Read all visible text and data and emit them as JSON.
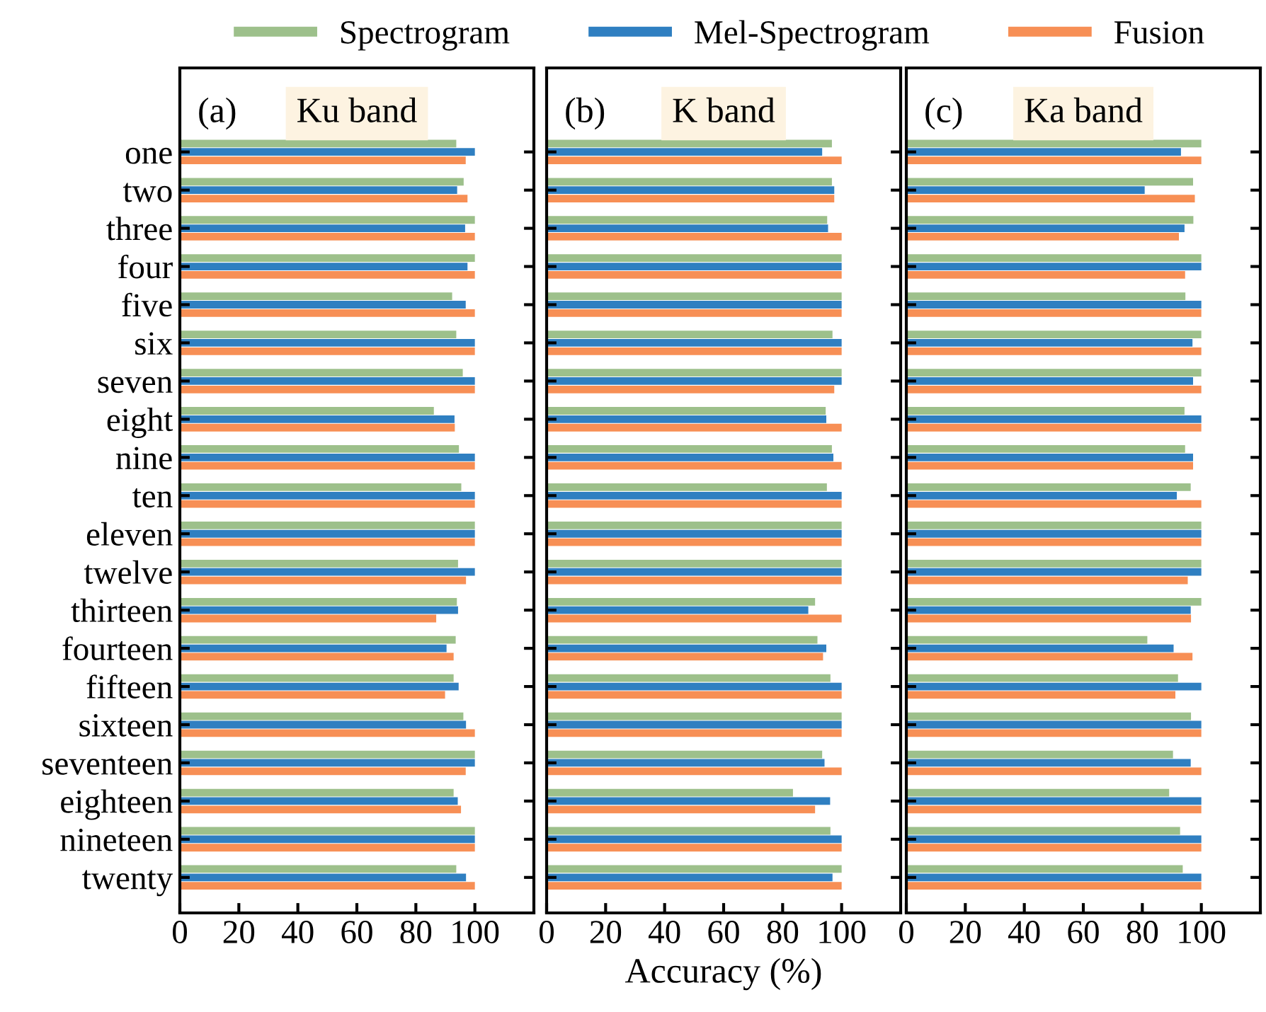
{
  "chart_data": [
    {
      "type": "bar",
      "orientation": "horizontal",
      "title": "Ku band",
      "annotations": [
        "(a)"
      ],
      "legend": "top",
      "grid": false,
      "categories": [
        "one",
        "two",
        "three",
        "four",
        "five",
        "six",
        "seven",
        "eight",
        "nine",
        "ten",
        "eleven",
        "twelve",
        "thirteen",
        "fourteen",
        "fifteen",
        "sixteen",
        "seventeen",
        "eighteen",
        "nineteen",
        "twenty"
      ],
      "xlim": [
        0,
        120
      ],
      "xticks": [
        0,
        20,
        40,
        60,
        80,
        100
      ],
      "series": [
        {
          "name": "Spectrogram",
          "color": "#9dc08b",
          "values": [
            93.7,
            96.2,
            100,
            100,
            92.3,
            93.7,
            95.9,
            86.1,
            94.6,
            95.4,
            100,
            94.3,
            93.9,
            93.5,
            92.8,
            96.1,
            100,
            92.8,
            100,
            93.7
          ]
        },
        {
          "name": "Mel-Spectrogram",
          "color": "#2f7fc1",
          "values": [
            100,
            94.0,
            96.7,
            97.5,
            96.9,
            100,
            100,
            93.1,
            100,
            100,
            100,
            100,
            94.3,
            90.4,
            94.5,
            97.0,
            100,
            94.2,
            100,
            97.0
          ]
        },
        {
          "name": "Fusion",
          "color": "#f78f55",
          "values": [
            96.9,
            97.5,
            100,
            100,
            100,
            100,
            100,
            93.2,
            100,
            100,
            100,
            97.0,
            86.9,
            92.8,
            89.9,
            100,
            96.9,
            95.3,
            100,
            100
          ]
        }
      ]
    },
    {
      "type": "bar",
      "orientation": "horizontal",
      "title": "K band",
      "annotations": [
        "(b)"
      ],
      "xlabel": "Accuracy (%)",
      "tick_labels": "x",
      "grid": false,
      "categories": [
        null,
        null,
        null,
        null,
        null,
        null,
        null,
        null,
        null,
        null,
        null,
        null,
        null,
        null,
        null,
        null,
        null,
        null,
        null,
        null
      ],
      "xlim": [
        0,
        120
      ],
      "xticks": [
        0,
        20,
        40,
        60,
        80,
        100
      ],
      "series": [
        {
          "color": "#9dc08b",
          "values": [
            96.7,
            96.7,
            95.1,
            100,
            100,
            96.9,
            100,
            94.6,
            96.7,
            95.0,
            100,
            100,
            91.0,
            91.8,
            96.2,
            100,
            93.4,
            83.5,
            96.2,
            100
          ]
        },
        {
          "color": "#2f7fc1",
          "values": [
            93.4,
            97.5,
            95.4,
            100,
            100,
            100,
            100,
            94.8,
            97.2,
            100,
            100,
            100,
            88.7,
            94.8,
            100,
            100,
            94.2,
            96.1,
            100,
            96.9
          ]
        },
        {
          "color": "#f78f55",
          "values": [
            100,
            97.5,
            100,
            100,
            100,
            100,
            97.5,
            100,
            100,
            100,
            100,
            100,
            100,
            93.7,
            100,
            100,
            100,
            91.0,
            100,
            100
          ]
        }
      ]
    },
    {
      "type": "bar",
      "orientation": "horizontal",
      "title": "Ka band",
      "annotations": [
        "(c)"
      ],
      "tick_labels": "x",
      "grid": false,
      "categories": [
        null,
        null,
        null,
        null,
        null,
        null,
        null,
        null,
        null,
        null,
        null,
        null,
        null,
        null,
        null,
        null,
        null,
        null,
        null,
        null
      ],
      "xlim": [
        0,
        120
      ],
      "xticks": [
        0,
        20,
        40,
        60,
        80,
        100
      ],
      "series": [
        {
          "color": "#9dc08b",
          "values": [
            100,
            97.2,
            97.3,
            100,
            94.6,
            100,
            100,
            94.3,
            94.5,
            96.4,
            100,
            100,
            100,
            81.7,
            92.1,
            96.5,
            90.4,
            89.1,
            92.8,
            93.7
          ]
        },
        {
          "color": "#2f7fc1",
          "values": [
            93.1,
            80.8,
            94.3,
            100,
            100,
            97.0,
            97.2,
            100,
            97.2,
            91.7,
            100,
            100,
            96.4,
            90.6,
            100,
            100,
            96.4,
            100,
            100,
            100
          ]
        },
        {
          "color": "#f78f55",
          "values": [
            100,
            97.8,
            92.4,
            94.5,
            100,
            100,
            100,
            100,
            97.2,
            100,
            100,
            95.4,
            96.5,
            97.0,
            91.2,
            100,
            100,
            100,
            100,
            100
          ]
        }
      ]
    }
  ]
}
